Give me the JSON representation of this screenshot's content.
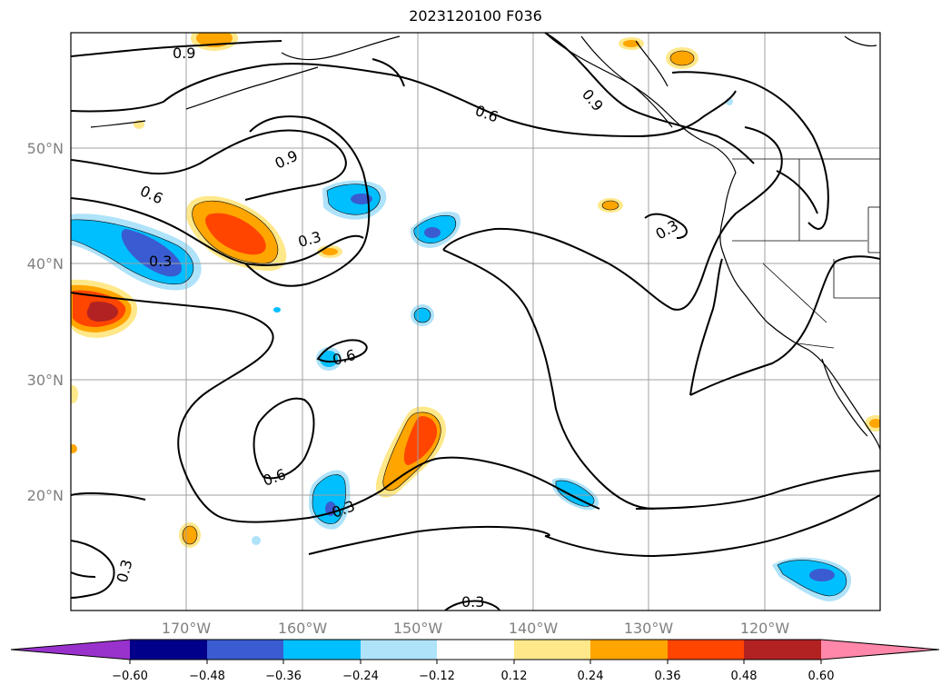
{
  "title": "2023120100 F036",
  "map": {
    "lon_ticks": [
      "170°W",
      "160°W",
      "150°W",
      "140°W",
      "130°W",
      "120°W"
    ],
    "lat_ticks": [
      "50°N",
      "40°N",
      "30°N",
      "20°N"
    ],
    "contour_labels": [
      "0.9",
      "0.6",
      "0.9",
      "0.9",
      "0.6",
      "0.3",
      "0.3",
      "0.3",
      "0.6",
      "0.6",
      "0.3",
      "0.3",
      "0.3"
    ],
    "gridline_color": "#a0a0a0",
    "coast_color": "#000000"
  },
  "colorbar": {
    "labels": [
      "−0.60",
      "−0.48",
      "−0.36",
      "−0.24",
      "−0.12",
      "0.12",
      "0.24",
      "0.36",
      "0.48",
      "0.60"
    ],
    "colors": [
      "#9932cc",
      "#00008b",
      "#3a5bd1",
      "#00bfff",
      "#aee3fa",
      "#ffffff",
      "#ffe88a",
      "#ffa500",
      "#ff4500",
      "#b22222",
      "#ff88aa"
    ]
  }
}
